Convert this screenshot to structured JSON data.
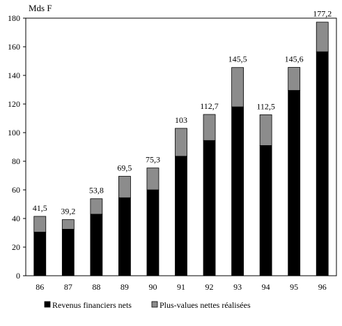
{
  "chart_data": {
    "type": "bar",
    "stacked": true,
    "ylabel": "Mds F",
    "ylim": [
      0,
      180
    ],
    "yticks": [
      0,
      20,
      40,
      60,
      80,
      100,
      120,
      140,
      160,
      180
    ],
    "categories": [
      "86",
      "87",
      "88",
      "89",
      "90",
      "91",
      "92",
      "93",
      "94",
      "95",
      "96"
    ],
    "totals": [
      "41,5",
      "39,2",
      "53,8",
      "69,5",
      "75,3",
      "103",
      "112,7",
      "145,5",
      "112,5",
      "145,6",
      "177,2"
    ],
    "total_values": [
      41.5,
      39.2,
      53.8,
      69.5,
      75.3,
      103,
      112.7,
      145.5,
      112.5,
      145.6,
      177.2
    ],
    "series": [
      {
        "name": "Revenus financiers nets",
        "color": "#000000",
        "values": [
          30.5,
          32.5,
          43,
          54.5,
          60,
          83.5,
          94.5,
          118,
          91,
          129.5,
          156.5
        ]
      },
      {
        "name": "Plus-values nettes réalisées",
        "color": "#8c8c8c",
        "values": [
          11,
          6.7,
          10.8,
          15,
          15.3,
          19.5,
          18.2,
          27.5,
          21.5,
          16.1,
          20.7
        ]
      }
    ],
    "grid": false,
    "legend_position": "bottom"
  }
}
